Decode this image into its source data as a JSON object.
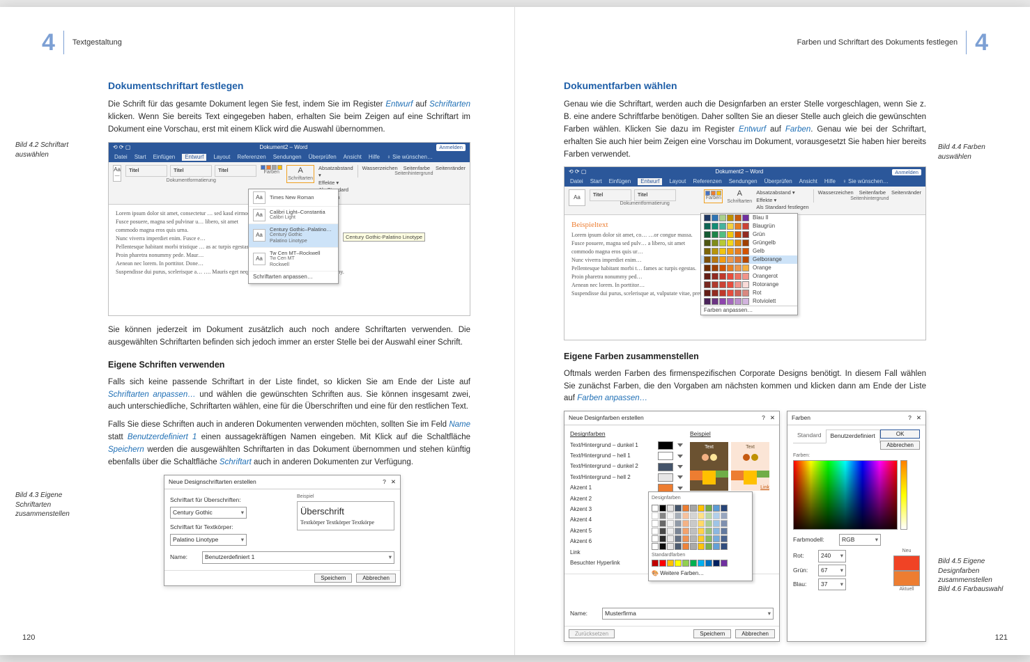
{
  "leftPage": {
    "chapterNum": "4",
    "runningHead": "Textgestaltung",
    "pageNum": "120",
    "h2": "Dokumentschriftart festlegen",
    "p1a": "Die Schrift für das gesamte Dokument legen Sie fest, indem Sie im Register ",
    "p1b": "Entwurf",
    "p1c": " auf ",
    "p1d": "Schriftarten",
    "p1e": " klicken. Wenn Sie bereits Text eingegeben haben, erhalten Sie beim Zeigen auf eine Schriftart im Dokument eine Vorschau, erst mit einem Klick wird die Auswahl übernommen.",
    "cap1": "Bild 4.2 Schriftart auswählen",
    "p2": "Sie können jederzeit im Dokument zusätzlich auch noch andere Schriftarten verwenden. Die ausgewählten Schriftarten befinden sich jedoch immer an erster Stelle bei der Auswahl einer Schrift.",
    "h3a": "Eigene Schriften verwenden",
    "p3a": "Falls sich keine passende Schriftart in der Liste findet, so klicken Sie am Ende der Liste auf ",
    "p3b": "Schriftarten anpassen…",
    "p3c": " und wählen die gewünschten Schriften aus. Sie können insgesamt zwei, auch unterschiedliche, Schriftarten wählen, eine für die Überschriften und eine für den restlichen Text.",
    "p4a": "Falls Sie diese Schriften auch in anderen Dokumenten verwenden möchten, sollten Sie im Feld ",
    "p4b": "Name",
    "p4c": " statt ",
    "p4d": "Benutzerdefiniert 1",
    "p4e": " einen aussagekräftigen Namen eingeben. Mit Klick auf die Schaltfläche ",
    "p4f": "Speichern",
    "p4g": " werden die ausgewählten Schriftarten in das Dokument übernommen und stehen künftig ebenfalls über die Schaltfläche ",
    "p4h": "Schriftart",
    "p4i": " auch in anderen Dokumenten zur Verfügung.",
    "cap2": "Bild 4.3 Eigene Schriftarten zusammenstellen"
  },
  "shot42": {
    "title": "Dokument2 – Word",
    "login": "Anmelden",
    "tabs": [
      "Datei",
      "Start",
      "Einfügen",
      "Entwurf",
      "Layout",
      "Referenzen",
      "Sendungen",
      "Überprüfen",
      "Ansicht",
      "Hilfe",
      "♀ Sie wünschen…"
    ],
    "groups": [
      "Dokumentformatierung",
      "Seitenhintergrund"
    ],
    "btnFarben": "Farben",
    "btnSchrift": "Schriftarten",
    "opts": [
      "Absatzabstand ▾",
      "Effekte ▾",
      "Als Standard festlegen"
    ],
    "right": [
      "Wasserzeichen",
      "Seitenfarbe",
      "Seitenränder"
    ],
    "fontDrop": [
      {
        "n": "Times New Roman"
      },
      {
        "n": "Calibri Light–Constantia",
        "s": "Calibri Light"
      },
      {
        "n": "Century Gothic–Palatino…",
        "s": "Century Gothic",
        "s2": "Palatino Linotype",
        "hl": true,
        "tip": "Century Gothic-Palatino Linotype"
      },
      {
        "n": "Tw Cen MT–Rockwell",
        "s": "Tw Cen MT",
        "s2": "Rockwell"
      }
    ],
    "fontDropFooter": "Schriftarten anpassen…",
    "lorem": [
      "Lorem ipsum dolor sit amet, consectetur … sed kasd eirmod aliquip cu…",
      "Fusce posuere, magna sed pulvinar u… libero, sit amet",
      "commodo magna eros quis urna.",
      "Nunc viverra imperdiet enim. Fusce e…",
      "Pellentesque habitant morbi tristique … as ac turpis egestas.",
      "Proin pharetra nonummy pede. Maur…",
      "Aenean nec lorem. In porttitor. Done…",
      "Suspendisse dui purus, scelerisque a… …. Mauris eget neque at sem venenatis eleifend. Ut nonummy."
    ]
  },
  "dlg43": {
    "title": "Neue Designschriftarten erstellen",
    "lbl1": "Schriftart für Überschriften:",
    "val1": "Century Gothic",
    "lbl2": "Schriftart für Textkörper:",
    "val2": "Palatino Linotype",
    "sampleHead": "Beispiel",
    "sample1": "Überschrift",
    "sample2": "Textkörper Textkörper Textkörpe",
    "nameLbl": "Name:",
    "nameVal": "Benutzerdefiniert 1",
    "save": "Speichern",
    "cancel": "Abbrechen"
  },
  "rightPage": {
    "chapterNum": "4",
    "runningHead": "Farben und Schriftart des Dokuments festlegen",
    "pageNum": "121",
    "h2": "Dokumentfarben wählen",
    "p1a": "Genau wie die Schriftart, werden auch die Designfarben an erster Stelle vorgeschlagen, wenn Sie z. B. eine andere Schriftfarbe benötigen. Daher sollten Sie an dieser Stelle auch gleich die gewünschten Farben wählen. Klicken Sie dazu im Register ",
    "p1b": "Entwurf",
    "p1c": " auf ",
    "p1d": "Farben",
    "p1e": ". Genau wie bei der Schriftart, erhalten Sie auch hier beim Zeigen eine Vorschau im Dokument, vorausgesetzt Sie haben hier bereits Farben verwendet.",
    "cap1": "Bild 4.4 Farben auswählen",
    "h3a": "Eigene Farben zusammenstellen",
    "p2a": "Oftmals werden Farben des firmenspezifischen Corporate Designs benötigt. In diesem Fall wählen Sie zunächst Farben, die den Vorgaben am nächsten kommen und klicken dann am Ende der Liste auf ",
    "p2b": "Farben anpassen…",
    "cap2": "Bild 4.5 Eigene Designfarben zusammenstellen",
    "cap3": "Bild 4.6 Farbauswahl"
  },
  "shot44": {
    "beispiel": "Beispieltext",
    "colorList": [
      {
        "n": "Blau II",
        "c": [
          "#1f3864",
          "#2e74b5",
          "#a8d08d",
          "#bf9000",
          "#c55a11",
          "#7030a0"
        ]
      },
      {
        "n": "Blaugrün",
        "c": [
          "#0e6655",
          "#138d75",
          "#45b39d",
          "#f4d03f",
          "#e67e22",
          "#cb4335"
        ]
      },
      {
        "n": "Grün",
        "c": [
          "#145a32",
          "#1e8449",
          "#52be80",
          "#f1c40f",
          "#d35400",
          "#922b21"
        ]
      },
      {
        "n": "Grüngelb",
        "c": [
          "#4d5612",
          "#7f8c1b",
          "#b7c934",
          "#f2d51a",
          "#e08e0b",
          "#a04000"
        ]
      },
      {
        "n": "Gelb",
        "c": [
          "#7d6608",
          "#b7950b",
          "#f1c40f",
          "#f39c12",
          "#e67e22",
          "#d35400"
        ]
      },
      {
        "n": "Gelborange",
        "hl": true,
        "c": [
          "#7e5109",
          "#b9770e",
          "#f39c12",
          "#eb984e",
          "#dc7633",
          "#ba4a00"
        ]
      },
      {
        "n": "Orange",
        "c": [
          "#6e2c00",
          "#a04000",
          "#d35400",
          "#e67e22",
          "#eb984e",
          "#f5b041"
        ]
      },
      {
        "n": "Orangerot",
        "c": [
          "#641e16",
          "#922b21",
          "#c0392b",
          "#e74c3c",
          "#ec7063",
          "#f1948a"
        ]
      },
      {
        "n": "Rotorange",
        "c": [
          "#78281f",
          "#b03a2e",
          "#cb4335",
          "#e74c3c",
          "#f1948a",
          "#fadbd8"
        ]
      },
      {
        "n": "Rot",
        "c": [
          "#641e16",
          "#922b21",
          "#c0392b",
          "#e74c3c",
          "#cd6155",
          "#d98880"
        ]
      },
      {
        "n": "Rotviolett",
        "c": [
          "#4a235a",
          "#6c3483",
          "#8e44ad",
          "#a569bd",
          "#bb8fce",
          "#d2b4de"
        ]
      }
    ],
    "footer": "Farben anpassen…"
  },
  "dlg45": {
    "title": "Neue Designfarben erstellen",
    "colHead1": "Designfarben",
    "colHead2": "Beispiel",
    "rows": [
      {
        "l": "Text/Hintergrund – dunkel 1",
        "c": "#000000"
      },
      {
        "l": "Text/Hintergrund – hell 1",
        "c": "#ffffff"
      },
      {
        "l": "Text/Hintergrund – dunkel 2",
        "c": "#44546a"
      },
      {
        "l": "Text/Hintergrund – hell 2",
        "c": "#e7e6e6"
      },
      {
        "l": "Akzent 1",
        "c": "#ed7d31"
      },
      {
        "l": "Akzent 2",
        "c": "#a5a5a5"
      },
      {
        "l": "Akzent 3",
        "c": "#ffc000"
      },
      {
        "l": "Akzent 4",
        "c": "#5b9bd5"
      },
      {
        "l": "Akzent 5",
        "c": "#70ad47"
      },
      {
        "l": "Akzent 6",
        "c": "#264478"
      },
      {
        "l": "Link",
        "c": "#0563c1"
      },
      {
        "l": "Besuchter Hyperlink",
        "c": "#954f72"
      }
    ],
    "pickerHead": "Designfarben",
    "stdHead": "Standardfarben",
    "more": "Weitere Farben…",
    "nameLbl": "Name:",
    "nameVal": "Musterfirma",
    "reset": "Zurücksetzen",
    "save": "Speichern",
    "cancel": "Abbrechen",
    "preview": {
      "text": "Text",
      "link": "Link"
    }
  },
  "dlg46": {
    "title": "Farben",
    "tabs": [
      "Standard",
      "Benutzerdefiniert"
    ],
    "lblFarben": "Farben:",
    "model": "Farbmodell:",
    "modelVal": "RGB",
    "r": "Rot:",
    "rv": "240",
    "g": "Grün:",
    "gv": "67",
    "b": "Blau:",
    "bv": "37",
    "neu": "Neu",
    "akt": "Aktuell",
    "ok": "OK",
    "cancel": "Abbrechen"
  }
}
